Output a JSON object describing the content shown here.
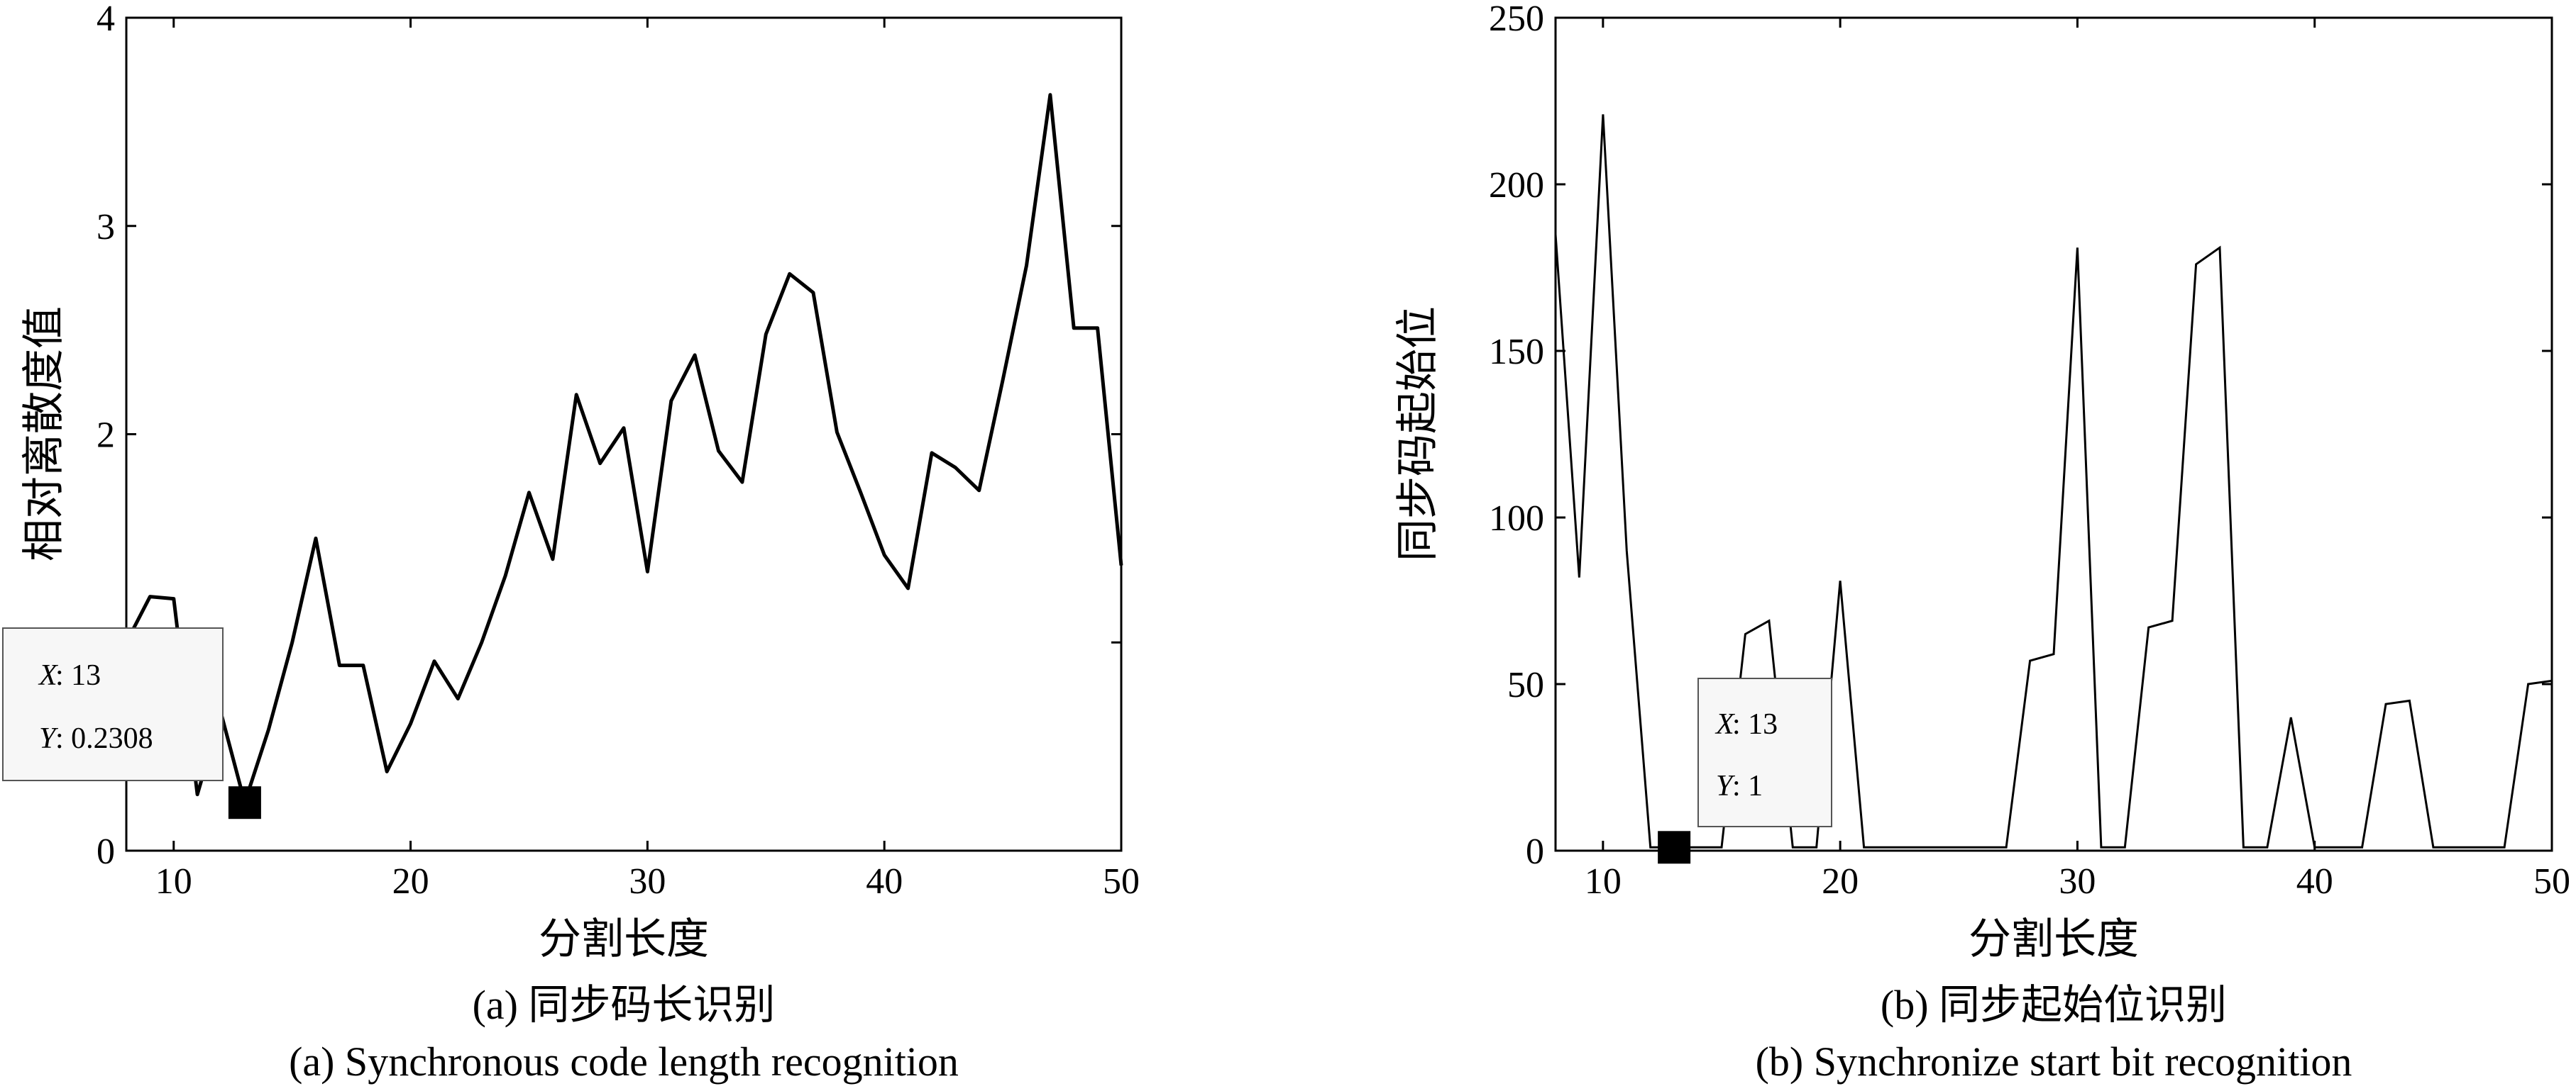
{
  "chart_data": [
    {
      "type": "line",
      "xlabel": "分割长度",
      "ylabel": "相对离散度值",
      "xlim": [
        8,
        50
      ],
      "ylim": [
        0,
        4
      ],
      "x_ticks": [
        10,
        20,
        30,
        40,
        50
      ],
      "y_ticks": [
        0,
        1,
        2,
        3,
        4
      ],
      "y_tick_labels": [
        "0",
        "",
        "2",
        "3",
        "4"
      ],
      "grid": false,
      "x": [
        8,
        9,
        10,
        11,
        12,
        13,
        14,
        15,
        16,
        17,
        18,
        19,
        20,
        21,
        22,
        23,
        24,
        25,
        26,
        27,
        28,
        29,
        30,
        31,
        32,
        33,
        34,
        35,
        36,
        37,
        38,
        39,
        40,
        41,
        42,
        43,
        44,
        45,
        46,
        47,
        48,
        49,
        50
      ],
      "series": [
        {
          "values": [
            1.0,
            1.22,
            1.21,
            0.27,
            0.66,
            0.2308,
            0.58,
            1.0,
            1.5,
            0.89,
            0.89,
            0.38,
            0.61,
            0.91,
            0.73,
            1.0,
            1.32,
            1.72,
            1.4,
            2.19,
            1.86,
            2.03,
            1.34,
            2.16,
            2.38,
            1.92,
            1.77,
            2.48,
            2.77,
            2.68,
            2.01,
            1.72,
            1.42,
            1.26,
            1.91,
            1.84,
            1.73,
            2.26,
            2.81,
            3.63,
            2.51,
            2.51,
            1.37
          ]
        }
      ],
      "datatip": {
        "x_label": "X",
        "x_value": "13",
        "y_label": "Y",
        "y_value": "0.2308",
        "x": 13,
        "y": 0.2308
      },
      "caption_cn": "(a) 同步码长识别",
      "caption_en": "(a) Synchronous code length recognition"
    },
    {
      "type": "line",
      "xlabel": "分割长度",
      "ylabel": "同步码起始位",
      "xlim": [
        8,
        50
      ],
      "ylim": [
        0,
        250
      ],
      "x_ticks": [
        10,
        20,
        30,
        40,
        50
      ],
      "y_ticks": [
        0,
        50,
        100,
        150,
        200,
        250
      ],
      "grid": false,
      "x": [
        8,
        9,
        10,
        11,
        12,
        13,
        14,
        15,
        16,
        17,
        18,
        19,
        20,
        21,
        22,
        23,
        24,
        25,
        26,
        27,
        28,
        29,
        30,
        31,
        32,
        33,
        34,
        35,
        36,
        37,
        38,
        39,
        40,
        41,
        42,
        43,
        44,
        45,
        46,
        47,
        48,
        49,
        50
      ],
      "series": [
        {
          "values": [
            185,
            82,
            221,
            90,
            1,
            1,
            1,
            1,
            65,
            69,
            1,
            1,
            81,
            1,
            1,
            1,
            1,
            1,
            1,
            1,
            57,
            59,
            181,
            1,
            1,
            67,
            69,
            176,
            181,
            1,
            1,
            40,
            1,
            1,
            1,
            44,
            45,
            1,
            1,
            1,
            1,
            50,
            51
          ]
        }
      ],
      "datatip": {
        "x_label": "X",
        "x_value": "13",
        "y_label": "Y",
        "y_value": "1",
        "x": 13,
        "y": 1
      },
      "caption_cn": "(b) 同步起始位识别",
      "caption_en": "(b) Synchronize start bit recognition"
    }
  ]
}
